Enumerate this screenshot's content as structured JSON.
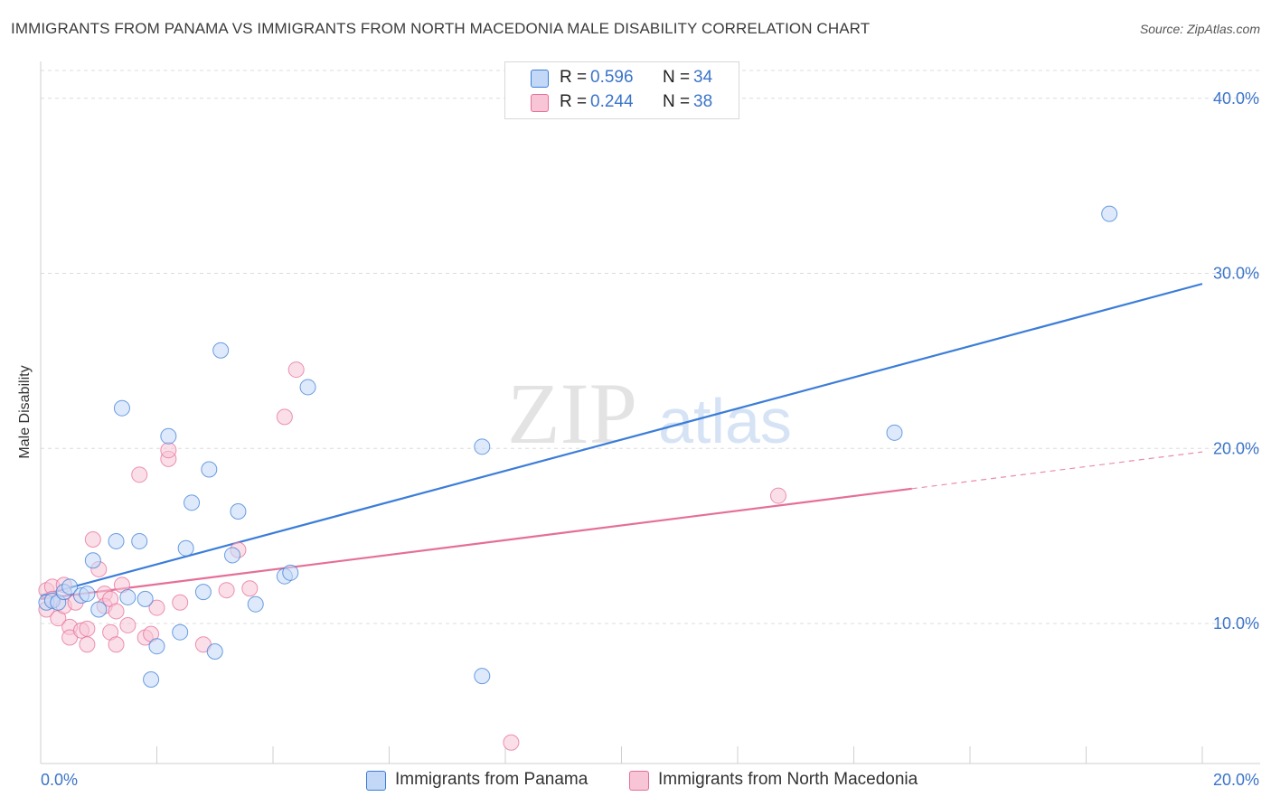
{
  "title": "IMMIGRANTS FROM PANAMA VS IMMIGRANTS FROM NORTH MACEDONIA MALE DISABILITY CORRELATION CHART",
  "source": "Source: ZipAtlas.com",
  "watermark": {
    "zip": "ZIP",
    "atlas": "atlas"
  },
  "colors": {
    "blue": "#3b7dd8",
    "blue_fill": "#c3d8f7",
    "pink": "#e56f97",
    "pink_fill": "#f8c5d6",
    "axis_text": "#3b74c9"
  },
  "legend_top": [
    {
      "r_label": "R =",
      "r_value": "0.596",
      "n_label": "N =",
      "n_value": "34"
    },
    {
      "r_label": "R =",
      "r_value": "0.244",
      "n_label": "N =",
      "n_value": "38"
    }
  ],
  "legend_bottom": [
    {
      "label": "Immigrants from Panama"
    },
    {
      "label": "Immigrants from North Macedonia"
    }
  ],
  "chart_data": {
    "type": "scatter",
    "title": "IMMIGRANTS FROM PANAMA VS IMMIGRANTS FROM NORTH MACEDONIA MALE DISABILITY CORRELATION CHART",
    "xlabel": "",
    "ylabel": "Male Disability",
    "xlim": [
      0,
      20
    ],
    "ylim": [
      2,
      42
    ],
    "x_tick_labels": [
      "0.0%",
      "20.0%"
    ],
    "y_ticks": [
      10,
      20,
      30,
      40
    ],
    "y_tick_labels": [
      "10.0%",
      "20.0%",
      "30.0%",
      "40.0%"
    ],
    "grid": "horizontal dashed",
    "series": [
      {
        "name": "Immigrants from Panama",
        "r": 0.596,
        "n": 34,
        "trend": {
          "x0": 0,
          "y0": 11.6,
          "x1": 20,
          "y1": 29.4,
          "solid_until": 20
        },
        "points": [
          [
            0.1,
            11.2
          ],
          [
            0.2,
            11.3
          ],
          [
            0.3,
            11.2
          ],
          [
            0.4,
            11.8
          ],
          [
            0.5,
            12.1
          ],
          [
            0.7,
            11.6
          ],
          [
            0.8,
            11.7
          ],
          [
            0.9,
            13.6
          ],
          [
            1.0,
            10.8
          ],
          [
            1.3,
            14.7
          ],
          [
            1.4,
            22.3
          ],
          [
            1.5,
            11.5
          ],
          [
            1.7,
            14.7
          ],
          [
            1.8,
            11.4
          ],
          [
            1.9,
            6.8
          ],
          [
            2.0,
            8.7
          ],
          [
            2.2,
            20.7
          ],
          [
            2.4,
            9.5
          ],
          [
            2.5,
            14.3
          ],
          [
            2.6,
            16.9
          ],
          [
            2.8,
            11.8
          ],
          [
            2.9,
            18.8
          ],
          [
            3.0,
            8.4
          ],
          [
            3.1,
            25.6
          ],
          [
            3.3,
            13.9
          ],
          [
            3.4,
            16.4
          ],
          [
            3.7,
            11.1
          ],
          [
            4.2,
            12.7
          ],
          [
            4.3,
            12.9
          ],
          [
            4.6,
            23.5
          ],
          [
            7.6,
            20.1
          ],
          [
            7.6,
            7.0
          ],
          [
            14.7,
            20.9
          ],
          [
            18.4,
            33.4
          ]
        ]
      },
      {
        "name": "Immigrants from North Macedonia",
        "r": 0.244,
        "n": 38,
        "trend": {
          "x0": 0,
          "y0": 11.4,
          "x1": 20,
          "y1": 19.8,
          "solid_until": 15
        },
        "points": [
          [
            0.1,
            10.8
          ],
          [
            0.1,
            11.9
          ],
          [
            0.2,
            12.1
          ],
          [
            0.2,
            11.4
          ],
          [
            0.3,
            10.3
          ],
          [
            0.4,
            12.2
          ],
          [
            0.4,
            11.0
          ],
          [
            0.5,
            9.8
          ],
          [
            0.5,
            9.2
          ],
          [
            0.6,
            11.2
          ],
          [
            0.7,
            9.6
          ],
          [
            0.8,
            8.8
          ],
          [
            0.8,
            9.7
          ],
          [
            0.9,
            14.8
          ],
          [
            1.0,
            13.1
          ],
          [
            1.1,
            11.7
          ],
          [
            1.1,
            11.0
          ],
          [
            1.2,
            11.4
          ],
          [
            1.2,
            9.5
          ],
          [
            1.3,
            8.8
          ],
          [
            1.3,
            10.7
          ],
          [
            1.4,
            12.2
          ],
          [
            1.5,
            9.9
          ],
          [
            1.7,
            18.5
          ],
          [
            1.8,
            9.2
          ],
          [
            1.9,
            9.4
          ],
          [
            2.0,
            10.9
          ],
          [
            2.2,
            19.4
          ],
          [
            2.2,
            19.9
          ],
          [
            2.4,
            11.2
          ],
          [
            2.8,
            8.8
          ],
          [
            3.2,
            11.9
          ],
          [
            3.4,
            14.2
          ],
          [
            3.6,
            12.0
          ],
          [
            4.2,
            21.8
          ],
          [
            4.4,
            24.5
          ],
          [
            8.1,
            3.2
          ],
          [
            12.7,
            17.3
          ]
        ]
      }
    ]
  }
}
